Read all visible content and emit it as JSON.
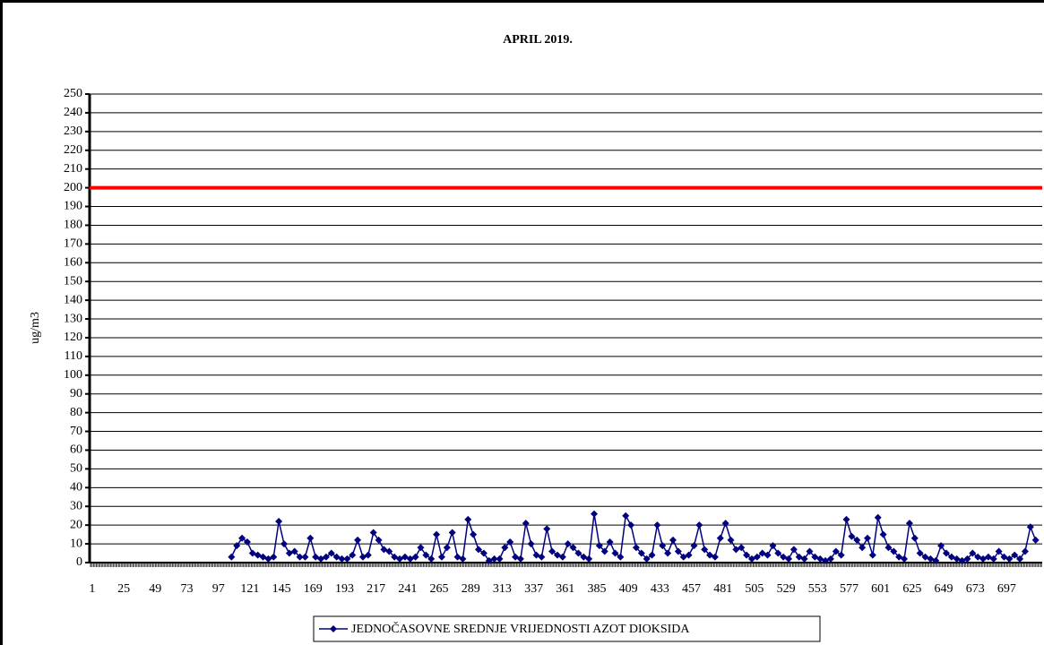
{
  "chart_data": {
    "type": "line",
    "title": "APRIL 2019.",
    "y_label": "ug/m3",
    "xlim": [
      -1,
      724
    ],
    "xticks": [
      1,
      25,
      49,
      73,
      97,
      121,
      145,
      169,
      193,
      217,
      241,
      265,
      289,
      313,
      337,
      361,
      385,
      409,
      433,
      457,
      481,
      505,
      529,
      553,
      577,
      601,
      625,
      649,
      673,
      697
    ],
    "ylim": [
      0,
      250
    ],
    "yticks": [
      0,
      10,
      20,
      30,
      40,
      50,
      60,
      70,
      80,
      90,
      100,
      110,
      120,
      130,
      140,
      150,
      160,
      170,
      180,
      190,
      200,
      210,
      220,
      230,
      240,
      250
    ],
    "grid": true,
    "legend": "bottom",
    "threshold": {
      "value": 200,
      "color": "#ff0000"
    },
    "x": [
      107,
      111,
      115,
      119,
      123,
      127,
      131,
      135,
      139,
      143,
      147,
      151,
      155,
      159,
      163,
      167,
      171,
      175,
      179,
      183,
      187,
      191,
      195,
      199,
      203,
      207,
      211,
      215,
      219,
      223,
      227,
      231,
      235,
      239,
      243,
      247,
      251,
      255,
      259,
      263,
      267,
      271,
      275,
      279,
      283,
      287,
      291,
      295,
      299,
      303,
      307,
      311,
      315,
      319,
      323,
      327,
      331,
      335,
      339,
      343,
      347,
      351,
      355,
      359,
      363,
      367,
      371,
      375,
      379,
      383,
      387,
      391,
      395,
      399,
      403,
      407,
      411,
      415,
      419,
      423,
      427,
      431,
      435,
      439,
      443,
      447,
      451,
      455,
      459,
      463,
      467,
      471,
      475,
      479,
      483,
      487,
      491,
      495,
      499,
      503,
      507,
      511,
      515,
      519,
      523,
      527,
      531,
      535,
      539,
      543,
      547,
      551,
      555,
      559,
      563,
      567,
      571,
      575,
      579,
      583,
      587,
      591,
      595,
      599,
      603,
      607,
      611,
      615,
      619,
      623,
      627,
      631,
      635,
      639,
      643,
      647,
      651,
      655,
      659,
      663,
      667,
      671,
      675,
      679,
      683,
      687,
      691,
      695,
      699,
      703,
      707,
      711,
      715,
      719
    ],
    "series": [
      {
        "name": "JEDNOČASOVNE SREDNJE VRIJEDNOSTI AZOT DIOKSIDA",
        "color": "#000080",
        "values": [
          3,
          9,
          13,
          11,
          5,
          4,
          3,
          2,
          3,
          22,
          10,
          5,
          6,
          3,
          3,
          13,
          3,
          2,
          3,
          5,
          3,
          2,
          2,
          4,
          12,
          3,
          4,
          16,
          12,
          7,
          6,
          3,
          2,
          3,
          2,
          3,
          8,
          4,
          2,
          15,
          3,
          8,
          16,
          3,
          2,
          23,
          15,
          7,
          5,
          1,
          2,
          2,
          8,
          11,
          3,
          2,
          21,
          10,
          4,
          3,
          18,
          6,
          4,
          3,
          10,
          8,
          5,
          3,
          2,
          26,
          9,
          6,
          11,
          5,
          3,
          25,
          20,
          8,
          5,
          2,
          4,
          20,
          9,
          5,
          12,
          6,
          3,
          4,
          9,
          20,
          7,
          4,
          3,
          13,
          21,
          12,
          7,
          8,
          4,
          2,
          3,
          5,
          4,
          9,
          5,
          3,
          2,
          7,
          3,
          2,
          6,
          3,
          2,
          1,
          2,
          6,
          4,
          23,
          14,
          12,
          8,
          13,
          4,
          24,
          15,
          8,
          6,
          3,
          2,
          21,
          13,
          5,
          3,
          2,
          1,
          9,
          5,
          3,
          2,
          1,
          2,
          5,
          3,
          2,
          3,
          2,
          6,
          3,
          2,
          4,
          2,
          6,
          19,
          12
        ]
      }
    ]
  }
}
